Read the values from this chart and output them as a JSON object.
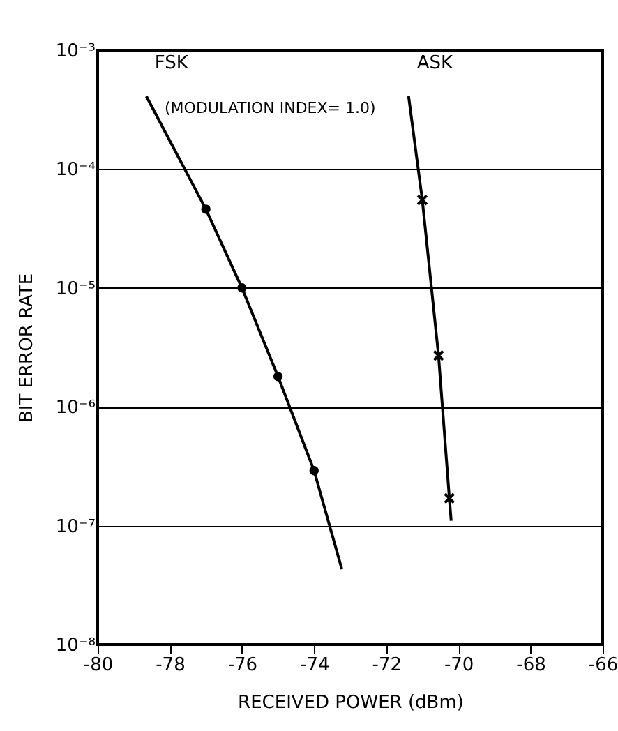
{
  "chart_data": {
    "type": "line",
    "xlabel": "RECEIVED POWER (dBm)",
    "ylabel": "BIT ERROR RATE",
    "annotations": [
      "(MODULATION INDEX= 1.0)"
    ],
    "series": [
      {
        "name": "FSK",
        "type": "line",
        "color": "#000000",
        "marker": "none",
        "x": [
          -78.65,
          -77,
          -76,
          -75,
          -74,
          -73.23
        ],
        "values": [
          0.00041,
          4.6e-05,
          1e-05,
          1.8e-06,
          2.9e-07,
          4.3e-08
        ]
      },
      {
        "type": "scatter",
        "color": "#000000",
        "marker": "circle",
        "x": [
          -77,
          -76,
          -75,
          -74
        ],
        "values": [
          4.6e-05,
          1e-05,
          1.8e-06,
          2.9e-07
        ]
      },
      {
        "name": "ASK",
        "type": "line",
        "color": "#000000",
        "marker": "none",
        "x": [
          -71.38,
          -71,
          -70.55,
          -70.25,
          -70.2
        ],
        "values": [
          0.00041,
          5.5e-05,
          2.7e-06,
          1.7e-07,
          1.1e-07
        ]
      },
      {
        "type": "scatter",
        "color": "#000000",
        "marker": "cross",
        "x": [
          -71,
          -70.55,
          -70.25
        ],
        "values": [
          5.5e-05,
          2.7e-06,
          1.7e-07
        ]
      }
    ],
    "log": "y",
    "grid": "y",
    "xlim": [
      -80,
      -66
    ],
    "xticks": [
      -80,
      -78,
      -76,
      -74,
      -72,
      -70,
      -68,
      -66
    ],
    "ylim": [
      1e-08,
      0.001
    ],
    "yticks": [
      {
        "value": 1e-08,
        "label": "10⁻⁸"
      },
      {
        "value": 1e-07,
        "label": "10⁻⁷"
      },
      {
        "value": 1e-06,
        "label": "10⁻⁶"
      },
      {
        "value": 1e-05,
        "label": "10⁻⁵"
      },
      {
        "value": 0.0001,
        "label": "10⁻⁴"
      },
      {
        "value": 0.001,
        "label": "10⁻³"
      }
    ]
  }
}
